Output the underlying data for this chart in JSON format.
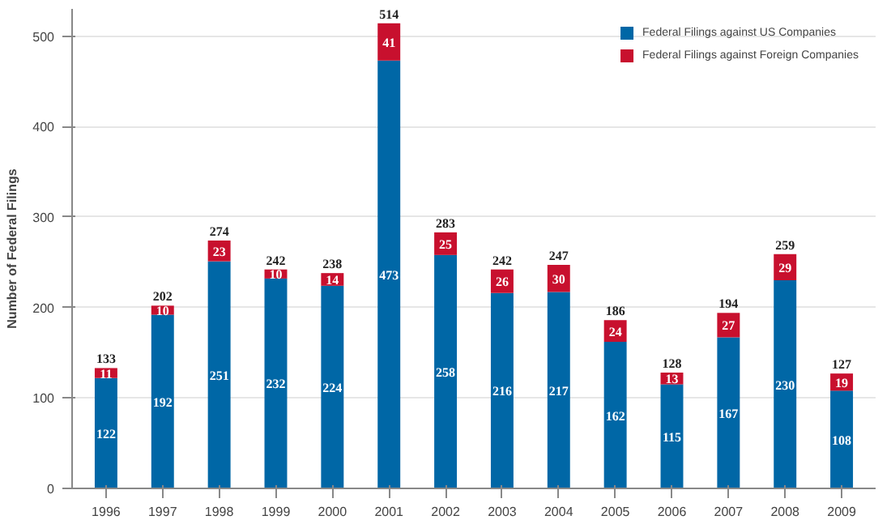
{
  "chart_data": {
    "type": "bar",
    "stacked": true,
    "ylabel": "Number of Federal Filings",
    "categories": [
      "1996",
      "1997",
      "1998",
      "1999",
      "2000",
      "2001",
      "2002",
      "2003",
      "2004",
      "2005",
      "2006",
      "2007",
      "2008",
      "2009"
    ],
    "series": [
      {
        "name": "Federal Filings against US Companies",
        "color": "#0067a6",
        "values": [
          122,
          192,
          251,
          232,
          224,
          473,
          258,
          216,
          217,
          162,
          115,
          167,
          230,
          108
        ]
      },
      {
        "name": "Federal Filings against Foreign Companies",
        "color": "#c8102e",
        "values": [
          11,
          10,
          23,
          10,
          14,
          41,
          25,
          26,
          30,
          24,
          13,
          27,
          29,
          19
        ]
      }
    ],
    "totals": [
      "133",
      "202",
      "274",
      "242",
      "238",
      "514",
      "283",
      "242",
      "247",
      "186",
      "128",
      "194",
      "259",
      "127"
    ],
    "data_labels": true,
    "ylim": [
      0,
      530
    ],
    "yticks": [
      0,
      100,
      200,
      300,
      400,
      500
    ],
    "grid": "y",
    "legend": "top right"
  }
}
